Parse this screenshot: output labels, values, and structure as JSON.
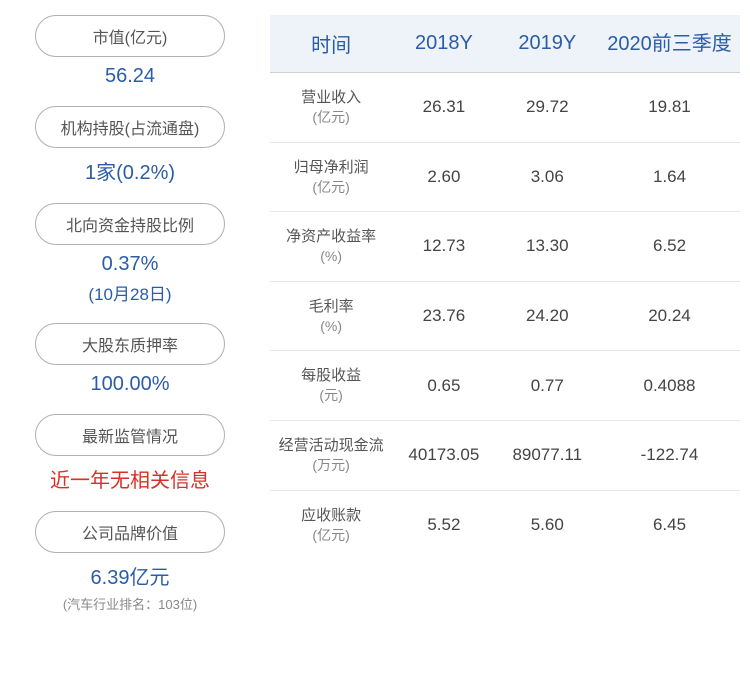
{
  "left": {
    "items": [
      {
        "label": "市值(亿元)",
        "value": "56.24",
        "color": "blue"
      },
      {
        "label": "机构持股(占流通盘)",
        "value": "1家(0.2%)",
        "color": "blue"
      },
      {
        "label": "北向资金持股比例",
        "value": "0.37%",
        "sub": "(10月28日)",
        "color": "blue"
      },
      {
        "label": "大股东质押率",
        "value": "100.00%",
        "color": "blue"
      },
      {
        "label": "最新监管情况",
        "value": "近一年无相关信息",
        "color": "red"
      },
      {
        "label": "公司品牌价值",
        "value": "6.39亿元",
        "note": "(汽车行业排名：103位)",
        "color": "blue"
      }
    ]
  },
  "table": {
    "headers": [
      "时间",
      "2018Y",
      "2019Y",
      "2020前三季度"
    ],
    "rows": [
      {
        "name": "营业收入",
        "unit": "(亿元)",
        "v1": "26.31",
        "v2": "29.72",
        "v3": "19.81"
      },
      {
        "name": "归母净利润",
        "unit": "(亿元)",
        "v1": "2.60",
        "v2": "3.06",
        "v3": "1.64"
      },
      {
        "name": "净资产收益率",
        "unit": "(%)",
        "v1": "12.73",
        "v2": "13.30",
        "v3": "6.52"
      },
      {
        "name": "毛利率",
        "unit": "(%)",
        "v1": "23.76",
        "v2": "24.20",
        "v3": "20.24"
      },
      {
        "name": "每股收益",
        "unit": "(元)",
        "v1": "0.65",
        "v2": "0.77",
        "v3": "0.4088"
      },
      {
        "name": "经营活动现金流",
        "unit": "(万元)",
        "v1": "40173.05",
        "v2": "89077.11",
        "v3": "-122.74"
      },
      {
        "name": "应收账款",
        "unit": "(亿元)",
        "v1": "5.52",
        "v2": "5.60",
        "v3": "6.45"
      }
    ]
  },
  "colors": {
    "header_bg": "#eef3fa",
    "header_text": "#2a5ca8",
    "blue": "#2a5ca8",
    "red": "#d93025",
    "border": "#d0d0d0"
  }
}
